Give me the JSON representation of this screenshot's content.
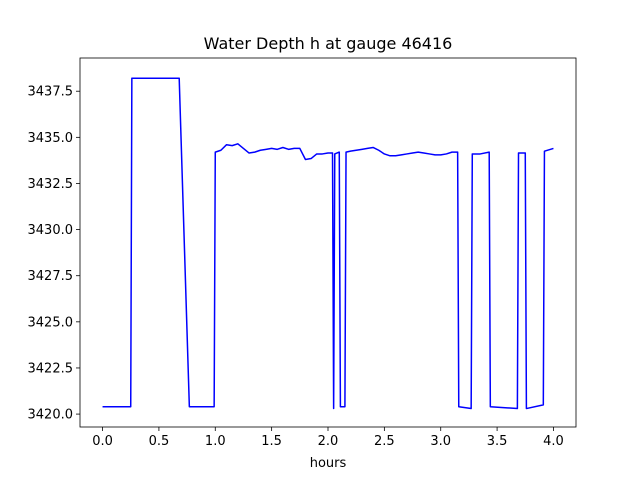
{
  "chart_data": {
    "type": "line",
    "title": "Water Depth h at gauge 46416",
    "xlabel": "hours",
    "ylabel": "",
    "xlim": [
      -0.2,
      4.2
    ],
    "ylim": [
      3419.3,
      3439.3
    ],
    "xticks": [
      0.0,
      0.5,
      1.0,
      1.5,
      2.0,
      2.5,
      3.0,
      3.5,
      4.0
    ],
    "xtick_labels": [
      "0.0",
      "0.5",
      "1.0",
      "1.5",
      "2.0",
      "2.5",
      "3.0",
      "3.5",
      "4.0"
    ],
    "yticks": [
      3420.0,
      3422.5,
      3425.0,
      3427.5,
      3430.0,
      3432.5,
      3435.0,
      3437.5
    ],
    "ytick_labels": [
      "3420.0",
      "3422.5",
      "3425.0",
      "3427.5",
      "3430.0",
      "3432.5",
      "3435.0",
      "3437.5"
    ],
    "grid": false,
    "series": [
      {
        "name": "",
        "color": "#0000ff",
        "x": [
          0.0,
          0.25,
          0.26,
          0.68,
          0.77,
          0.99,
          1.0,
          1.05,
          1.1,
          1.15,
          1.2,
          1.25,
          1.3,
          1.35,
          1.4,
          1.45,
          1.5,
          1.55,
          1.6,
          1.65,
          1.7,
          1.75,
          1.8,
          1.85,
          1.9,
          1.95,
          2.0,
          2.02,
          2.04,
          2.05,
          2.06,
          2.1,
          2.11,
          2.15,
          2.16,
          2.2,
          2.25,
          2.3,
          2.35,
          2.4,
          2.45,
          2.5,
          2.55,
          2.6,
          2.65,
          2.7,
          2.75,
          2.8,
          2.85,
          2.9,
          2.95,
          3.0,
          3.05,
          3.1,
          3.15,
          3.16,
          3.27,
          3.28,
          3.35,
          3.43,
          3.44,
          3.68,
          3.69,
          3.75,
          3.76,
          3.91,
          3.92,
          4.0
        ],
        "y": [
          3420.4,
          3420.4,
          3438.2,
          3438.2,
          3420.4,
          3420.4,
          3434.2,
          3434.3,
          3434.6,
          3434.55,
          3434.65,
          3434.4,
          3434.15,
          3434.2,
          3434.3,
          3434.35,
          3434.4,
          3434.35,
          3434.45,
          3434.35,
          3434.4,
          3434.4,
          3433.8,
          3433.85,
          3434.1,
          3434.1,
          3434.15,
          3434.15,
          3434.15,
          3420.3,
          3434.1,
          3434.2,
          3420.4,
          3420.4,
          3434.2,
          3434.25,
          3434.3,
          3434.35,
          3434.4,
          3434.45,
          3434.3,
          3434.1,
          3434.0,
          3434.0,
          3434.05,
          3434.1,
          3434.15,
          3434.2,
          3434.15,
          3434.1,
          3434.05,
          3434.05,
          3434.1,
          3434.2,
          3434.2,
          3420.4,
          3420.3,
          3434.1,
          3434.1,
          3434.2,
          3420.4,
          3420.3,
          3434.15,
          3434.15,
          3420.3,
          3420.5,
          3434.25,
          3434.4
        ]
      }
    ]
  }
}
